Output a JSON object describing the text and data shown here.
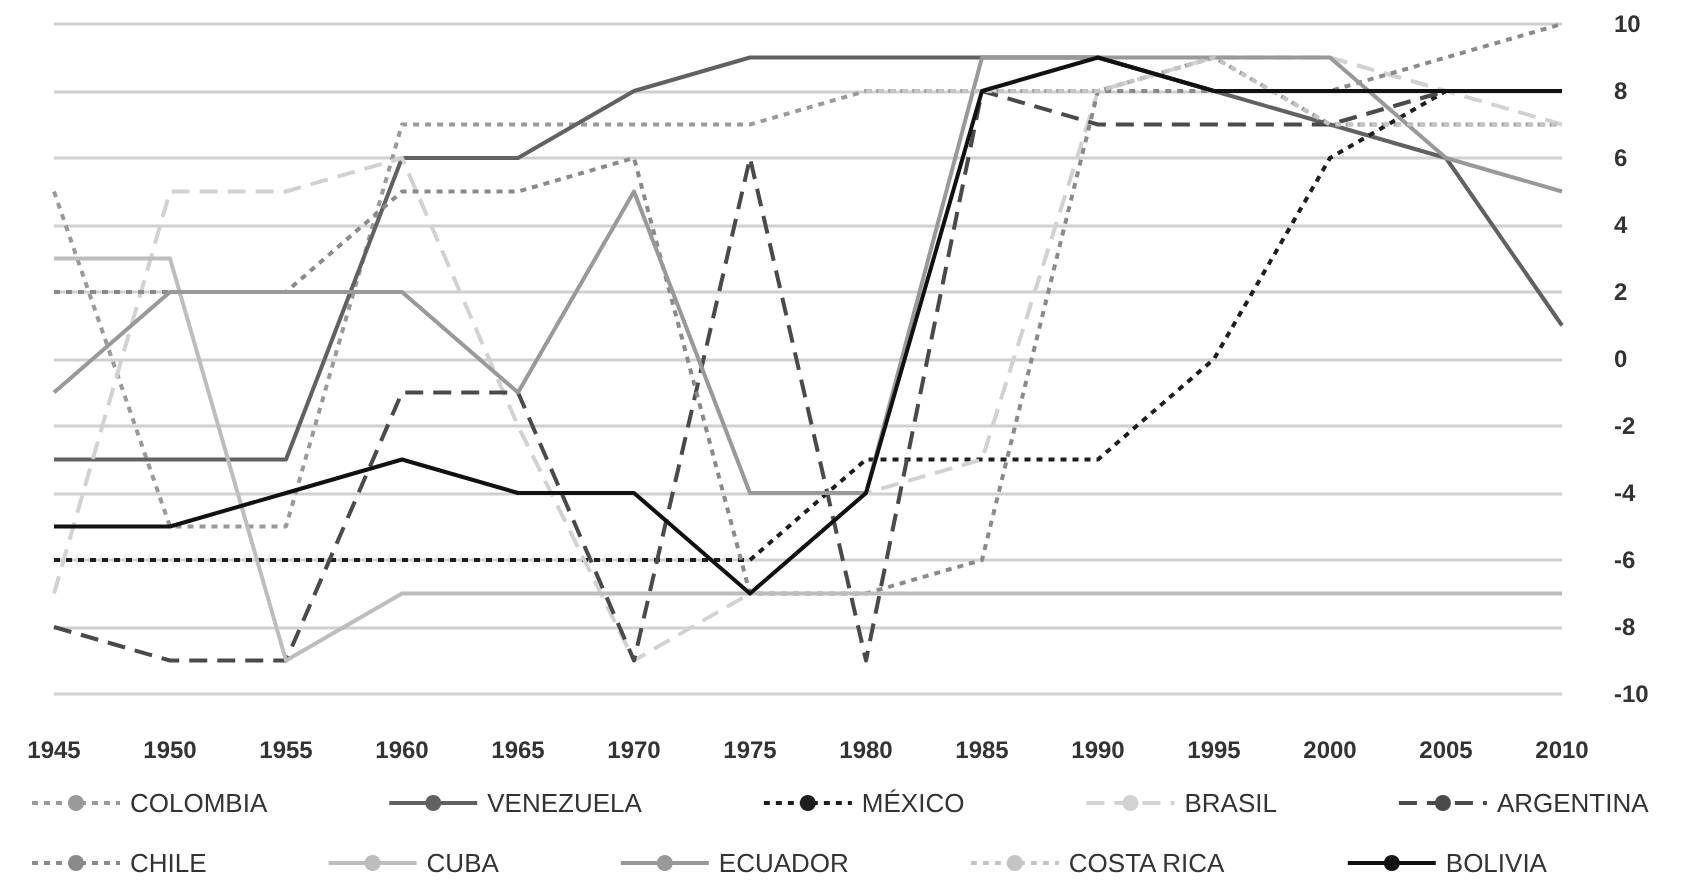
{
  "chart_data": {
    "type": "line",
    "categories": [
      "1945",
      "1950",
      "1955",
      "1960",
      "1965",
      "1970",
      "1975",
      "1980",
      "1985",
      "1990",
      "1995",
      "2000",
      "2005",
      "2010"
    ],
    "ylim": [
      -10,
      10
    ],
    "yticks": [
      -10,
      -8,
      -6,
      -4,
      -2,
      0,
      2,
      4,
      6,
      8,
      10
    ],
    "grid": "y",
    "legend": "bottom",
    "marker": "none",
    "series": [
      {
        "name": "COLOMBIA",
        "color": "#9a9a9a",
        "line_style": "dotted",
        "values": [
          5,
          -5,
          -5,
          7,
          7,
          7,
          7,
          8,
          8,
          8,
          9,
          7,
          7,
          7
        ]
      },
      {
        "name": "VENEZUELA",
        "color": "#616161",
        "line_style": "solid",
        "values": [
          -3,
          -3,
          -3,
          6,
          6,
          8,
          9,
          9,
          9,
          9,
          8,
          7,
          6,
          1
        ]
      },
      {
        "name": "MÉXICO",
        "color": "#1e1e1e",
        "line_style": "dotted",
        "values": [
          -6,
          -6,
          -6,
          -6,
          -6,
          -6,
          -6,
          -3,
          -3,
          -3,
          0,
          6,
          8,
          8
        ]
      },
      {
        "name": "BRASIL",
        "color": "#d2d2d2",
        "line_style": "dashed",
        "values": [
          -7,
          5,
          5,
          6,
          -2,
          -9,
          -7,
          -4,
          -3,
          8,
          9,
          9,
          8,
          7
        ]
      },
      {
        "name": "ARGENTINA",
        "color": "#4a4a4a",
        "line_style": "dashed",
        "values": [
          -8,
          -9,
          -9,
          -1,
          -1,
          -9,
          6,
          -9,
          8,
          7,
          7,
          7,
          8,
          8
        ]
      },
      {
        "name": "CHILE",
        "color": "#8a8a8a",
        "line_style": "dotted",
        "values": [
          2,
          2,
          2,
          5,
          5,
          6,
          -7,
          -7,
          -6,
          8,
          8,
          8,
          9,
          10
        ]
      },
      {
        "name": "CUBA",
        "color": "#bdbdbd",
        "line_style": "solid",
        "values": [
          3,
          3,
          -9,
          -7,
          -7,
          -7,
          -7,
          -7,
          -7,
          -7,
          -7,
          -7,
          -7,
          -7
        ]
      },
      {
        "name": "ECUADOR",
        "color": "#999999",
        "line_style": "solid",
        "values": [
          -1,
          2,
          2,
          2,
          -1,
          5,
          -4,
          -4,
          9,
          9,
          9,
          9,
          6,
          5
        ]
      },
      {
        "name": "COSTA RICA",
        "color": "#c4c4c4",
        "line_style": "dotted",
        "values": [
          null,
          null,
          null,
          null,
          null,
          null,
          null,
          8,
          8,
          8,
          9,
          7,
          7,
          7
        ]
      },
      {
        "name": "BOLIVIA",
        "color": "#111111",
        "line_style": "solid",
        "values": [
          -5,
          -5,
          -4,
          -3,
          -4,
          -4,
          -7,
          -4,
          8,
          9,
          8,
          8,
          8,
          8
        ]
      }
    ]
  }
}
